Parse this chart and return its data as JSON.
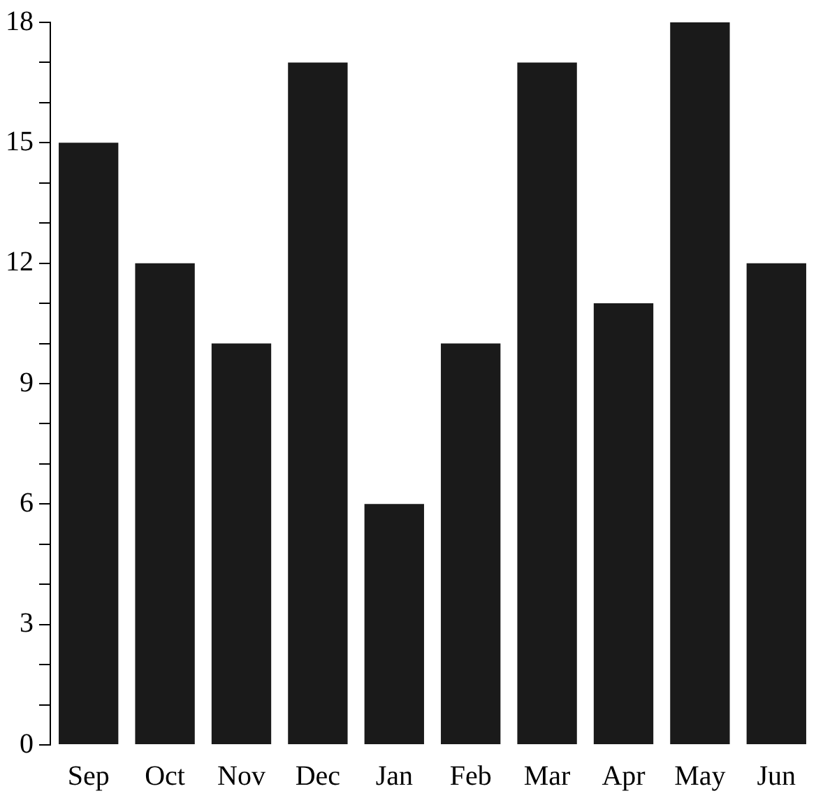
{
  "chart_data": {
    "type": "bar",
    "categories": [
      "Sep",
      "Oct",
      "Nov",
      "Dec",
      "Jan",
      "Feb",
      "Mar",
      "Apr",
      "May",
      "Jun"
    ],
    "values": [
      15,
      12,
      10,
      17,
      6,
      10,
      17,
      11,
      18,
      12
    ],
    "color": "#1a1a1a",
    "ylim": [
      0,
      18
    ],
    "yticks": [
      0,
      {
        "value": 1,
        "label": null
      },
      {
        "value": 2,
        "label": null
      },
      3,
      {
        "value": 4,
        "label": null
      },
      {
        "value": 5,
        "label": null
      },
      6,
      {
        "value": 7,
        "label": null
      },
      {
        "value": 8,
        "label": null
      },
      9,
      {
        "value": 10,
        "label": null
      },
      {
        "value": 11,
        "label": null
      },
      12,
      {
        "value": 13,
        "label": null
      },
      {
        "value": 14,
        "label": null
      },
      15,
      {
        "value": 16,
        "label": null
      },
      {
        "value": 17,
        "label": null
      },
      18
    ]
  }
}
